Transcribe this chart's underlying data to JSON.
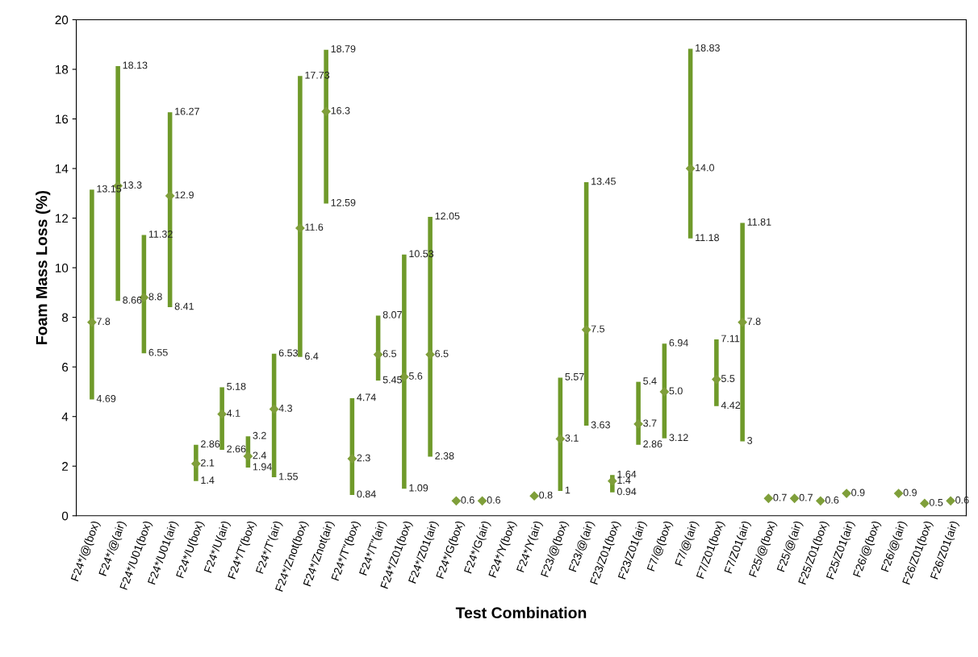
{
  "chart_data": {
    "type": "scatter",
    "xlabel": "Test Combination",
    "ylabel": "Foam Mass Loss (%)",
    "categories": [
      "F24*/@(box)",
      "F24*/@(air)",
      "F24*/U01(box)",
      "F24*/U01(air)",
      "F24*/U(box)",
      "F24*/U(air)",
      "F24*/T'(box)",
      "F24*/T'(air)",
      "F24*/Znot(box)",
      "F24*/Znot(air)",
      "F24*/T\"(box)",
      "F24*/T\"(air)",
      "F24*/Z01(box)",
      "F24*/Z01(air)",
      "F24*/G(box)",
      "F24*/G(air)",
      "F24*/Y(box)",
      "F24*/Y(air)",
      "F23/@(box)",
      "F23/@(air)",
      "F23/Z01(box)",
      "F23/Z01(air)",
      "F7/@(box)",
      "F7/@(air)",
      "F7/Z01(box)",
      "F7/Z01(air)",
      "F25/@(box)",
      "F25/@(air)",
      "F25/Z01(box)",
      "F25/Z01(air)",
      "F26/@(box)",
      "F26/@(air)",
      "F26/Z01(box)",
      "F26/Z01(air)"
    ],
    "series": [
      {
        "color": "#6f9a2a",
        "values": [
          7.8,
          13.3,
          8.8,
          12.9,
          2.1,
          4.1,
          2.4,
          4.3,
          11.6,
          16.3,
          2.3,
          6.5,
          5.6,
          6.5,
          0.6,
          0.6,
          null,
          0.8,
          3.1,
          7.5,
          1.4,
          3.7,
          5.0,
          14.0,
          5.5,
          7.8,
          0.7,
          0.7,
          0.6,
          0.9,
          null,
          0.9,
          0.5,
          0.6
        ],
        "value_labels": [
          "7.8",
          "13.3",
          "8.8",
          "12.9",
          "2.1",
          "4.1",
          "2.4",
          "4.3",
          "11.6",
          "16.3",
          "2.3",
          "6.5",
          "5.6",
          "6.5",
          "0.6",
          "0.6",
          null,
          "0.8",
          "3.1",
          "7.5",
          "1.4",
          "3.7",
          "5.0",
          "14.0",
          "5.5",
          "7.8",
          "0.7",
          "0.7",
          "0.6",
          "0.9",
          null,
          "0.9",
          "0.5",
          "0.6"
        ],
        "errors": [
          [
            4.69,
            13.15
          ],
          [
            8.66,
            18.13
          ],
          [
            6.55,
            11.32
          ],
          [
            8.41,
            16.27
          ],
          [
            1.4,
            2.86
          ],
          [
            2.66,
            5.18
          ],
          [
            1.94,
            3.2
          ],
          [
            1.55,
            6.53
          ],
          [
            6.4,
            17.73
          ],
          [
            12.59,
            18.79
          ],
          [
            0.84,
            4.74
          ],
          [
            5.45,
            8.07
          ],
          [
            1.09,
            10.53
          ],
          [
            2.38,
            12.05
          ],
          null,
          null,
          null,
          null,
          [
            1,
            5.57
          ],
          [
            3.63,
            13.45
          ],
          [
            0.94,
            1.64
          ],
          [
            2.86,
            5.4
          ],
          [
            3.12,
            6.94
          ],
          [
            11.18,
            18.83
          ],
          [
            4.42,
            7.11
          ],
          [
            3,
            11.81
          ],
          null,
          null,
          null,
          null,
          null,
          null,
          null,
          null
        ]
      }
    ],
    "annotations": [
      {
        "text": "4.69",
        "x": "F24*/@(box)",
        "y": 4.69
      },
      {
        "text": "13.15",
        "x": "F24*/@(box)",
        "y": 13.15
      },
      {
        "text": "8.66",
        "x": "F24*/@(air)",
        "y": 8.66
      },
      {
        "text": "18.13",
        "x": "F24*/@(air)",
        "y": 18.13
      },
      {
        "text": "6.55",
        "x": "F24*/U01(box)",
        "y": 6.55
      },
      {
        "text": "11.32",
        "x": "F24*/U01(box)",
        "y": 11.32
      },
      {
        "text": "8.41",
        "x": "F24*/U01(air)",
        "y": 8.41
      },
      {
        "text": "16.27",
        "x": "F24*/U01(air)",
        "y": 16.27
      },
      {
        "text": "1.4",
        "x": "F24*/U(box)",
        "y": 1.4
      },
      {
        "text": "2.86",
        "x": "F24*/U(box)",
        "y": 2.86
      },
      {
        "text": "2.66",
        "x": "F24*/U(air)",
        "y": 2.66
      },
      {
        "text": "5.18",
        "x": "F24*/U(air)",
        "y": 5.18
      },
      {
        "text": "1.94",
        "x": "F24*/T'(box)",
        "y": 1.94
      },
      {
        "text": "3.2",
        "x": "F24*/T'(box)",
        "y": 3.2
      },
      {
        "text": "1.55",
        "x": "F24*/T'(air)",
        "y": 1.55
      },
      {
        "text": "6.53",
        "x": "F24*/T'(air)",
        "y": 6.53
      },
      {
        "text": "6.4",
        "x": "F24*/Znot(box)",
        "y": 6.4
      },
      {
        "text": "17.73",
        "x": "F24*/Znot(box)",
        "y": 17.73
      },
      {
        "text": "12.59",
        "x": "F24*/Znot(air)",
        "y": 12.59
      },
      {
        "text": "18.79",
        "x": "F24*/Znot(air)",
        "y": 18.79
      },
      {
        "text": "0.84",
        "x": "F24*/T\"(box)",
        "y": 0.84
      },
      {
        "text": "4.74",
        "x": "F24*/T\"(box)",
        "y": 4.74
      },
      {
        "text": "5.45",
        "x": "F24*/T\"(air)",
        "y": 5.45
      },
      {
        "text": "8.07",
        "x": "F24*/T\"(air)",
        "y": 8.07
      },
      {
        "text": "1.09",
        "x": "F24*/Z01(box)",
        "y": 1.09
      },
      {
        "text": "10.53",
        "x": "F24*/Z01(box)",
        "y": 10.53
      },
      {
        "text": "2.38",
        "x": "F24*/Z01(air)",
        "y": 2.38
      },
      {
        "text": "12.05",
        "x": "F24*/Z01(air)",
        "y": 12.05
      },
      {
        "text": "1",
        "x": "F23/@(box)",
        "y": 1
      },
      {
        "text": "5.57",
        "x": "F23/@(box)",
        "y": 5.57
      },
      {
        "text": "3.63",
        "x": "F23/@(air)",
        "y": 3.63
      },
      {
        "text": "13.45",
        "x": "F23/@(air)",
        "y": 13.45
      },
      {
        "text": "0.94",
        "x": "F23/Z01(box)",
        "y": 0.94
      },
      {
        "text": "1.64",
        "x": "F23/Z01(box)",
        "y": 1.64
      },
      {
        "text": "2.86",
        "x": "F23/Z01(air)",
        "y": 2.86
      },
      {
        "text": "5.4",
        "x": "F23/Z01(air)",
        "y": 5.4
      },
      {
        "text": "3.12",
        "x": "F7/@(box)",
        "y": 3.12
      },
      {
        "text": "6.94",
        "x": "F7/@(box)",
        "y": 6.94
      },
      {
        "text": "11.18",
        "x": "F7/@(air)",
        "y": 11.18
      },
      {
        "text": "18.83",
        "x": "F7/@(air)",
        "y": 18.83
      },
      {
        "text": "4.42",
        "x": "F7/Z01(box)",
        "y": 4.42
      },
      {
        "text": "7.11",
        "x": "F7/Z01(box)",
        "y": 7.11
      },
      {
        "text": "3",
        "x": "F7/Z01(air)",
        "y": 3
      },
      {
        "text": "11.81",
        "x": "F7/Z01(air)",
        "y": 11.81
      }
    ],
    "ylim": [
      0,
      20
    ],
    "yticks": [
      0,
      2,
      4,
      6,
      8,
      10,
      12,
      14,
      16,
      18,
      20
    ],
    "marker": "diamond",
    "grid": false,
    "legend": false
  }
}
